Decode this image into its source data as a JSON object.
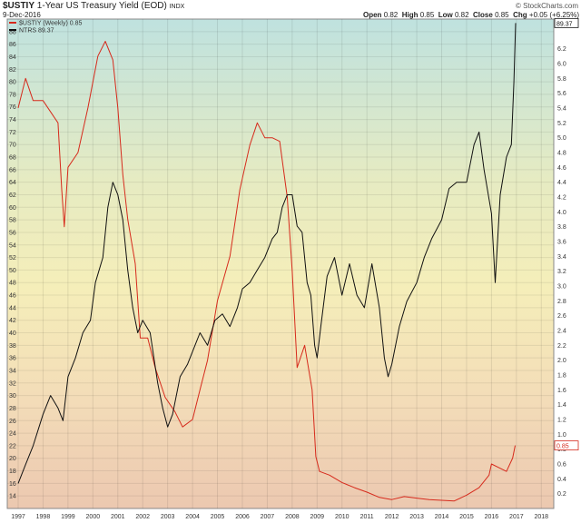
{
  "header": {
    "symbol": "$USTIY",
    "description": "1-Year US Treasury Yield (EOD)",
    "exchange": "INDX",
    "date": "9-Dec-2016",
    "ohlc": {
      "open_label": "Open",
      "open": "0.82",
      "high_label": "High",
      "high": "0.85",
      "low_label": "Low",
      "low": "0.82",
      "close_label": "Close",
      "close": "0.85",
      "chg_label": "Chg",
      "chg": "+0.05 (+6.25%)"
    },
    "brand": "© StockCharts.com"
  },
  "chart_data": {
    "type": "line",
    "xlim": [
      1997.0,
      2018.5
    ],
    "x_ticks": [
      "1997",
      "1998",
      "1999",
      "2000",
      "2001",
      "2002",
      "2003",
      "2004",
      "2005",
      "2006",
      "2007",
      "2008",
      "2009",
      "2010",
      "2011",
      "2012",
      "2013",
      "2014",
      "2015",
      "2016",
      "2017",
      "2018"
    ],
    "left_axis": {
      "ylim": [
        12,
        90
      ],
      "ticks": [
        14,
        16,
        18,
        20,
        22,
        24,
        26,
        28,
        30,
        32,
        34,
        36,
        38,
        40,
        42,
        44,
        46,
        48,
        50,
        52,
        54,
        56,
        58,
        60,
        62,
        64,
        66,
        68,
        70,
        72,
        74,
        76,
        78,
        80,
        82,
        84,
        86,
        88
      ]
    },
    "right_axis": {
      "ylim": [
        0.0,
        6.6
      ],
      "ticks": [
        "0.2",
        "0.4",
        "0.6",
        "0.8",
        "1.0",
        "1.2",
        "1.4",
        "1.6",
        "1.8",
        "2.0",
        "2.2",
        "2.4",
        "2.6",
        "2.8",
        "3.0",
        "3.2",
        "3.4",
        "3.6",
        "3.8",
        "4.0",
        "4.2",
        "4.4",
        "4.6",
        "4.8",
        "5.0",
        "5.2",
        "5.4",
        "5.6",
        "5.8",
        "6.0",
        "6.2"
      ]
    },
    "series": [
      {
        "name": "$USTIY (Weekly) 0.85",
        "axis": "right",
        "color": "#d62a1c",
        "last_label": "0.85",
        "points": [
          [
            1997.0,
            5.4
          ],
          [
            1997.3,
            5.8
          ],
          [
            1997.6,
            5.5
          ],
          [
            1998.0,
            5.5
          ],
          [
            1998.4,
            5.3
          ],
          [
            1998.6,
            5.2
          ],
          [
            1998.75,
            4.3
          ],
          [
            1998.85,
            3.8
          ],
          [
            1999.0,
            4.6
          ],
          [
            1999.4,
            4.8
          ],
          [
            1999.8,
            5.4
          ],
          [
            2000.2,
            6.1
          ],
          [
            2000.5,
            6.3
          ],
          [
            2000.8,
            6.05
          ],
          [
            2001.0,
            5.4
          ],
          [
            2001.2,
            4.5
          ],
          [
            2001.4,
            3.9
          ],
          [
            2001.7,
            3.3
          ],
          [
            2001.9,
            2.3
          ],
          [
            2002.2,
            2.3
          ],
          [
            2002.5,
            1.9
          ],
          [
            2002.9,
            1.5
          ],
          [
            2003.3,
            1.3
          ],
          [
            2003.6,
            1.1
          ],
          [
            2004.0,
            1.2
          ],
          [
            2004.3,
            1.6
          ],
          [
            2004.6,
            2.0
          ],
          [
            2005.0,
            2.8
          ],
          [
            2005.5,
            3.4
          ],
          [
            2005.9,
            4.3
          ],
          [
            2006.3,
            4.9
          ],
          [
            2006.6,
            5.2
          ],
          [
            2006.9,
            5.0
          ],
          [
            2007.2,
            5.0
          ],
          [
            2007.5,
            4.95
          ],
          [
            2007.8,
            4.2
          ],
          [
            2008.0,
            3.2
          ],
          [
            2008.2,
            1.9
          ],
          [
            2008.5,
            2.2
          ],
          [
            2008.8,
            1.6
          ],
          [
            2008.95,
            0.7
          ],
          [
            2009.1,
            0.5
          ],
          [
            2009.5,
            0.45
          ],
          [
            2010.0,
            0.35
          ],
          [
            2010.5,
            0.28
          ],
          [
            2011.0,
            0.22
          ],
          [
            2011.5,
            0.15
          ],
          [
            2012.0,
            0.12
          ],
          [
            2012.5,
            0.16
          ],
          [
            2013.0,
            0.14
          ],
          [
            2013.5,
            0.12
          ],
          [
            2014.0,
            0.11
          ],
          [
            2014.5,
            0.1
          ],
          [
            2015.0,
            0.18
          ],
          [
            2015.5,
            0.28
          ],
          [
            2015.9,
            0.45
          ],
          [
            2016.0,
            0.6
          ],
          [
            2016.3,
            0.55
          ],
          [
            2016.6,
            0.5
          ],
          [
            2016.85,
            0.68
          ],
          [
            2016.95,
            0.85
          ]
        ]
      },
      {
        "name": "NTRS 89.37",
        "axis": "left",
        "color": "#111111",
        "last_label": "89.37",
        "points": [
          [
            1997.0,
            16
          ],
          [
            1997.3,
            19
          ],
          [
            1997.6,
            22
          ],
          [
            1998.0,
            27
          ],
          [
            1998.3,
            30
          ],
          [
            1998.6,
            28
          ],
          [
            1998.8,
            26
          ],
          [
            1999.0,
            33
          ],
          [
            1999.3,
            36
          ],
          [
            1999.6,
            40
          ],
          [
            1999.9,
            42
          ],
          [
            2000.1,
            48
          ],
          [
            2000.4,
            52
          ],
          [
            2000.6,
            60
          ],
          [
            2000.8,
            64
          ],
          [
            2001.0,
            62
          ],
          [
            2001.2,
            58
          ],
          [
            2001.4,
            50
          ],
          [
            2001.6,
            44
          ],
          [
            2001.8,
            40
          ],
          [
            2002.0,
            42
          ],
          [
            2002.3,
            40
          ],
          [
            2002.6,
            32
          ],
          [
            2002.8,
            28
          ],
          [
            2003.0,
            25
          ],
          [
            2003.2,
            27
          ],
          [
            2003.5,
            33
          ],
          [
            2003.8,
            35
          ],
          [
            2004.0,
            37
          ],
          [
            2004.3,
            40
          ],
          [
            2004.6,
            38
          ],
          [
            2004.9,
            42
          ],
          [
            2005.2,
            43
          ],
          [
            2005.5,
            41
          ],
          [
            2005.8,
            44
          ],
          [
            2006.0,
            47
          ],
          [
            2006.3,
            48
          ],
          [
            2006.6,
            50
          ],
          [
            2006.9,
            52
          ],
          [
            2007.2,
            55
          ],
          [
            2007.4,
            56
          ],
          [
            2007.6,
            60
          ],
          [
            2007.8,
            62
          ],
          [
            2008.0,
            62
          ],
          [
            2008.2,
            57
          ],
          [
            2008.4,
            56
          ],
          [
            2008.6,
            48
          ],
          [
            2008.75,
            46
          ],
          [
            2008.9,
            38
          ],
          [
            2009.0,
            36
          ],
          [
            2009.15,
            41
          ],
          [
            2009.4,
            49
          ],
          [
            2009.7,
            52
          ],
          [
            2010.0,
            46
          ],
          [
            2010.3,
            51
          ],
          [
            2010.6,
            46
          ],
          [
            2010.9,
            44
          ],
          [
            2011.2,
            51
          ],
          [
            2011.5,
            44
          ],
          [
            2011.7,
            36
          ],
          [
            2011.85,
            33
          ],
          [
            2012.0,
            35
          ],
          [
            2012.3,
            41
          ],
          [
            2012.6,
            45
          ],
          [
            2013.0,
            48
          ],
          [
            2013.3,
            52
          ],
          [
            2013.6,
            55
          ],
          [
            2014.0,
            58
          ],
          [
            2014.3,
            63
          ],
          [
            2014.6,
            64
          ],
          [
            2015.0,
            64
          ],
          [
            2015.3,
            70
          ],
          [
            2015.5,
            72
          ],
          [
            2015.7,
            66
          ],
          [
            2016.0,
            59
          ],
          [
            2016.15,
            48
          ],
          [
            2016.35,
            62
          ],
          [
            2016.6,
            68
          ],
          [
            2016.8,
            70
          ],
          [
            2016.9,
            80
          ],
          [
            2016.97,
            89.37
          ]
        ]
      }
    ]
  }
}
